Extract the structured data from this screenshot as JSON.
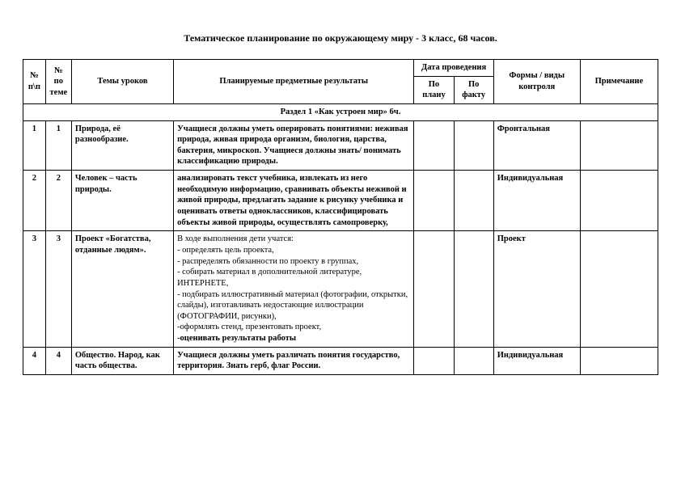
{
  "page_title": "Тематическое планирование по окружающему миру - 3 класс, 68 часов.",
  "headers": {
    "idx": "№ п\\п",
    "topic_no": "№ по теме",
    "theme": "Темы уроков",
    "results": "Планируемые предметные результаты",
    "date_group": "Дата проведения",
    "date_plan": "По плану",
    "date_fact": "По факту",
    "control": "Формы / виды контроля",
    "note": "Примечание"
  },
  "section1_title": "Раздел 1 «Как устроен мир» 6ч.",
  "rows": [
    {
      "idx": "1",
      "topic_no": "1",
      "theme": "Природа, её разнообразие.",
      "results": "Учащиеся должны уметь оперировать понятиями: неживая природа, живая природа организм, биология, царства, бактерия, микроскоп. Учащиеся должны знать/ понимать классификацию природы.",
      "results_bold": true,
      "date_plan": "",
      "date_fact": "",
      "control": "Фронтальная",
      "note": ""
    },
    {
      "idx": "2",
      "topic_no": "2",
      "theme": "Человек – часть природы.",
      "results": "анализировать текст учебника, извлекать из него необходимую информацию, сравнивать объекты неживой и живой природы, предлагать задание к рисунку учебника и оценивать ответы одноклассников, классифицировать объекты живой природы, осуществлять самопроверку,",
      "results_bold": true,
      "date_plan": "",
      "date_fact": "",
      "control": "Индивидуальная",
      "note": ""
    },
    {
      "idx": "3",
      "topic_no": "3",
      "theme": "Проект «Богатства, отданные людям».",
      "results": "В ходе выполнения дети учатся:\n- определять цель проекта,\n- распределять обязанности по проекту в группах,\n- собирать материал в дополнительной литературе, ИНТЕРНЕТЕ,\n-  подбирать иллюстративный материал (фотографии, открытки, слайды), изготавливать недостающие иллюстрации (ФОТОГРАФИИ, рисунки),\n-оформлять стенд, презентовать проект,",
      "results_bold": false,
      "results_tail": "-оценивать результаты работы",
      "date_plan": "",
      "date_fact": "",
      "control": "Проект",
      "note": ""
    },
    {
      "idx": "4",
      "topic_no": "4",
      "theme": "Общество. Народ, как часть общества.",
      "results": "Учащиеся должны уметь  различать понятия государство, территория. Знать герб, флаг России.",
      "results_bold": true,
      "date_plan": "",
      "date_fact": "",
      "control": "Индивидуальная",
      "note": ""
    }
  ]
}
